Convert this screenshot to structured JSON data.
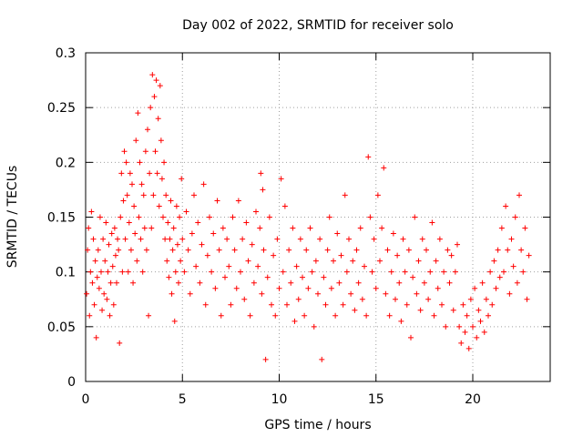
{
  "chart_data": {
    "type": "scatter",
    "title": "Day 002 of 2022, SRMTID for receiver solo",
    "xlabel": "GPS time / hours",
    "ylabel": "SRMTID / TECUs",
    "xlim": [
      0,
      24
    ],
    "ylim": [
      0,
      0.3
    ],
    "x_ticks": [
      0,
      5,
      10,
      15,
      20
    ],
    "x_tick_labels": [
      "0",
      "5",
      "10",
      "15",
      "20"
    ],
    "y_ticks": [
      0,
      0.05,
      0.1,
      0.15,
      0.2,
      0.25,
      0.3
    ],
    "y_tick_labels": [
      "0",
      "0.05",
      "0.1",
      "0.15",
      "0.2",
      "0.25",
      "0.3"
    ],
    "grid": true,
    "marker": "+",
    "series": [
      {
        "name": "SRMTID",
        "color": "#ff0000",
        "points": [
          [
            0.05,
            0.08
          ],
          [
            0.1,
            0.12
          ],
          [
            0.15,
            0.14
          ],
          [
            0.2,
            0.06
          ],
          [
            0.25,
            0.1
          ],
          [
            0.3,
            0.155
          ],
          [
            0.35,
            0.09
          ],
          [
            0.4,
            0.13
          ],
          [
            0.45,
            0.07
          ],
          [
            0.5,
            0.11
          ],
          [
            0.55,
            0.04
          ],
          [
            0.6,
            0.095
          ],
          [
            0.65,
            0.12
          ],
          [
            0.7,
            0.085
          ],
          [
            0.75,
            0.15
          ],
          [
            0.8,
            0.1
          ],
          [
            0.85,
            0.065
          ],
          [
            0.9,
            0.13
          ],
          [
            0.95,
            0.08
          ],
          [
            1.0,
            0.11
          ],
          [
            1.05,
            0.145
          ],
          [
            1.1,
            0.075
          ],
          [
            1.15,
            0.1
          ],
          [
            1.2,
            0.125
          ],
          [
            1.25,
            0.06
          ],
          [
            1.3,
            0.09
          ],
          [
            1.35,
            0.135
          ],
          [
            1.4,
            0.105
          ],
          [
            1.45,
            0.07
          ],
          [
            1.5,
            0.14
          ],
          [
            1.55,
            0.115
          ],
          [
            1.6,
            0.09
          ],
          [
            1.65,
            0.13
          ],
          [
            1.7,
            0.12
          ],
          [
            1.75,
            0.035
          ],
          [
            1.8,
            0.15
          ],
          [
            1.85,
            0.19
          ],
          [
            1.9,
            0.1
          ],
          [
            1.95,
            0.165
          ],
          [
            2.0,
            0.21
          ],
          [
            2.05,
            0.13
          ],
          [
            2.1,
            0.2
          ],
          [
            2.15,
            0.17
          ],
          [
            2.2,
            0.1
          ],
          [
            2.25,
            0.145
          ],
          [
            2.3,
            0.19
          ],
          [
            2.35,
            0.12
          ],
          [
            2.4,
            0.18
          ],
          [
            2.45,
            0.09
          ],
          [
            2.5,
            0.16
          ],
          [
            2.55,
            0.135
          ],
          [
            2.6,
            0.22
          ],
          [
            2.65,
            0.11
          ],
          [
            2.7,
            0.245
          ],
          [
            2.75,
            0.15
          ],
          [
            2.8,
            0.2
          ],
          [
            2.85,
            0.13
          ],
          [
            2.9,
            0.18
          ],
          [
            2.95,
            0.1
          ],
          [
            3.0,
            0.17
          ],
          [
            3.05,
            0.14
          ],
          [
            3.1,
            0.21
          ],
          [
            3.15,
            0.12
          ],
          [
            3.2,
            0.23
          ],
          [
            3.25,
            0.06
          ],
          [
            3.3,
            0.19
          ],
          [
            3.35,
            0.25
          ],
          [
            3.4,
            0.14
          ],
          [
            3.45,
            0.28
          ],
          [
            3.5,
            0.17
          ],
          [
            3.55,
            0.26
          ],
          [
            3.6,
            0.21
          ],
          [
            3.65,
            0.275
          ],
          [
            3.7,
            0.19
          ],
          [
            3.75,
            0.24
          ],
          [
            3.8,
            0.16
          ],
          [
            3.85,
            0.27
          ],
          [
            3.9,
            0.22
          ],
          [
            3.95,
            0.185
          ],
          [
            4.0,
            0.15
          ],
          [
            4.05,
            0.2
          ],
          [
            4.1,
            0.13
          ],
          [
            4.15,
            0.17
          ],
          [
            4.2,
            0.11
          ],
          [
            4.25,
            0.145
          ],
          [
            4.3,
            0.095
          ],
          [
            4.35,
            0.13
          ],
          [
            4.4,
            0.165
          ],
          [
            4.45,
            0.08
          ],
          [
            4.5,
            0.12
          ],
          [
            4.55,
            0.14
          ],
          [
            4.6,
            0.055
          ],
          [
            4.65,
            0.1
          ],
          [
            4.7,
            0.16
          ],
          [
            4.75,
            0.125
          ],
          [
            4.8,
            0.09
          ],
          [
            4.85,
            0.15
          ],
          [
            4.9,
            0.11
          ],
          [
            4.95,
            0.185
          ],
          [
            5.0,
            0.13
          ],
          [
            5.1,
            0.1
          ],
          [
            5.2,
            0.155
          ],
          [
            5.3,
            0.12
          ],
          [
            5.4,
            0.08
          ],
          [
            5.5,
            0.135
          ],
          [
            5.6,
            0.17
          ],
          [
            5.7,
            0.105
          ],
          [
            5.8,
            0.145
          ],
          [
            5.9,
            0.09
          ],
          [
            6.0,
            0.125
          ],
          [
            6.1,
            0.18
          ],
          [
            6.2,
            0.07
          ],
          [
            6.3,
            0.115
          ],
          [
            6.4,
            0.15
          ],
          [
            6.5,
            0.1
          ],
          [
            6.6,
            0.135
          ],
          [
            6.7,
            0.085
          ],
          [
            6.8,
            0.165
          ],
          [
            6.9,
            0.12
          ],
          [
            7.0,
            0.06
          ],
          [
            7.1,
            0.14
          ],
          [
            7.2,
            0.095
          ],
          [
            7.3,
            0.13
          ],
          [
            7.4,
            0.105
          ],
          [
            7.5,
            0.07
          ],
          [
            7.6,
            0.15
          ],
          [
            7.7,
            0.12
          ],
          [
            7.8,
            0.085
          ],
          [
            7.9,
            0.165
          ],
          [
            8.0,
            0.1
          ],
          [
            8.1,
            0.13
          ],
          [
            8.2,
            0.075
          ],
          [
            8.3,
            0.145
          ],
          [
            8.4,
            0.11
          ],
          [
            8.5,
            0.06
          ],
          [
            8.6,
            0.125
          ],
          [
            8.7,
            0.09
          ],
          [
            8.8,
            0.155
          ],
          [
            8.9,
            0.105
          ],
          [
            9.0,
            0.14
          ],
          [
            9.05,
            0.19
          ],
          [
            9.1,
            0.08
          ],
          [
            9.15,
            0.175
          ],
          [
            9.2,
            0.12
          ],
          [
            9.3,
            0.02
          ],
          [
            9.4,
            0.095
          ],
          [
            9.5,
            0.15
          ],
          [
            9.6,
            0.07
          ],
          [
            9.7,
            0.115
          ],
          [
            9.8,
            0.06
          ],
          [
            9.9,
            0.13
          ],
          [
            10.0,
            0.085
          ],
          [
            10.1,
            0.185
          ],
          [
            10.2,
            0.1
          ],
          [
            10.3,
            0.16
          ],
          [
            10.4,
            0.07
          ],
          [
            10.5,
            0.12
          ],
          [
            10.6,
            0.09
          ],
          [
            10.7,
            0.14
          ],
          [
            10.8,
            0.055
          ],
          [
            10.9,
            0.105
          ],
          [
            11.0,
            0.075
          ],
          [
            11.1,
            0.13
          ],
          [
            11.2,
            0.095
          ],
          [
            11.3,
            0.06
          ],
          [
            11.4,
            0.12
          ],
          [
            11.5,
            0.085
          ],
          [
            11.6,
            0.14
          ],
          [
            11.7,
            0.1
          ],
          [
            11.8,
            0.05
          ],
          [
            11.9,
            0.11
          ],
          [
            12.0,
            0.08
          ],
          [
            12.1,
            0.13
          ],
          [
            12.2,
            0.02
          ],
          [
            12.3,
            0.095
          ],
          [
            12.4,
            0.07
          ],
          [
            12.5,
            0.12
          ],
          [
            12.6,
            0.15
          ],
          [
            12.7,
            0.085
          ],
          [
            12.8,
            0.11
          ],
          [
            12.9,
            0.06
          ],
          [
            13.0,
            0.135
          ],
          [
            13.1,
            0.09
          ],
          [
            13.2,
            0.115
          ],
          [
            13.3,
            0.07
          ],
          [
            13.4,
            0.17
          ],
          [
            13.5,
            0.1
          ],
          [
            13.6,
            0.13
          ],
          [
            13.7,
            0.08
          ],
          [
            13.8,
            0.11
          ],
          [
            13.9,
            0.065
          ],
          [
            14.0,
            0.12
          ],
          [
            14.1,
            0.09
          ],
          [
            14.2,
            0.14
          ],
          [
            14.3,
            0.075
          ],
          [
            14.4,
            0.105
          ],
          [
            14.5,
            0.06
          ],
          [
            14.6,
            0.205
          ],
          [
            14.7,
            0.15
          ],
          [
            14.8,
            0.1
          ],
          [
            14.9,
            0.13
          ],
          [
            15.0,
            0.085
          ],
          [
            15.1,
            0.17
          ],
          [
            15.2,
            0.11
          ],
          [
            15.3,
            0.14
          ],
          [
            15.4,
            0.195
          ],
          [
            15.5,
            0.08
          ],
          [
            15.6,
            0.12
          ],
          [
            15.7,
            0.06
          ],
          [
            15.8,
            0.1
          ],
          [
            15.9,
            0.135
          ],
          [
            16.0,
            0.075
          ],
          [
            16.1,
            0.115
          ],
          [
            16.2,
            0.09
          ],
          [
            16.3,
            0.055
          ],
          [
            16.4,
            0.13
          ],
          [
            16.5,
            0.1
          ],
          [
            16.6,
            0.07
          ],
          [
            16.7,
            0.12
          ],
          [
            16.8,
            0.04
          ],
          [
            16.9,
            0.095
          ],
          [
            17.0,
            0.15
          ],
          [
            17.1,
            0.08
          ],
          [
            17.2,
            0.11
          ],
          [
            17.3,
            0.065
          ],
          [
            17.4,
            0.13
          ],
          [
            17.5,
            0.09
          ],
          [
            17.6,
            0.12
          ],
          [
            17.7,
            0.075
          ],
          [
            17.8,
            0.1
          ],
          [
            17.9,
            0.145
          ],
          [
            18.0,
            0.06
          ],
          [
            18.1,
            0.11
          ],
          [
            18.2,
            0.085
          ],
          [
            18.3,
            0.13
          ],
          [
            18.4,
            0.07
          ],
          [
            18.5,
            0.1
          ],
          [
            18.6,
            0.05
          ],
          [
            18.7,
            0.12
          ],
          [
            18.8,
            0.09
          ],
          [
            18.9,
            0.115
          ],
          [
            19.0,
            0.065
          ],
          [
            19.1,
            0.1
          ],
          [
            19.2,
            0.125
          ],
          [
            19.3,
            0.05
          ],
          [
            19.4,
            0.035
          ],
          [
            19.5,
            0.07
          ],
          [
            19.6,
            0.045
          ],
          [
            19.7,
            0.06
          ],
          [
            19.8,
            0.03
          ],
          [
            19.9,
            0.075
          ],
          [
            20.0,
            0.05
          ],
          [
            20.1,
            0.085
          ],
          [
            20.2,
            0.04
          ],
          [
            20.3,
            0.065
          ],
          [
            20.4,
            0.055
          ],
          [
            20.5,
            0.09
          ],
          [
            20.6,
            0.045
          ],
          [
            20.7,
            0.075
          ],
          [
            20.8,
            0.06
          ],
          [
            20.9,
            0.1
          ],
          [
            21.0,
            0.07
          ],
          [
            21.1,
            0.11
          ],
          [
            21.2,
            0.085
          ],
          [
            21.3,
            0.12
          ],
          [
            21.4,
            0.095
          ],
          [
            21.5,
            0.14
          ],
          [
            21.6,
            0.1
          ],
          [
            21.7,
            0.16
          ],
          [
            21.8,
            0.12
          ],
          [
            21.9,
            0.08
          ],
          [
            22.0,
            0.13
          ],
          [
            22.1,
            0.105
          ],
          [
            22.2,
            0.15
          ],
          [
            22.3,
            0.09
          ],
          [
            22.4,
            0.17
          ],
          [
            22.5,
            0.12
          ],
          [
            22.6,
            0.1
          ],
          [
            22.7,
            0.14
          ],
          [
            22.8,
            0.075
          ],
          [
            22.9,
            0.115
          ]
        ]
      }
    ]
  }
}
